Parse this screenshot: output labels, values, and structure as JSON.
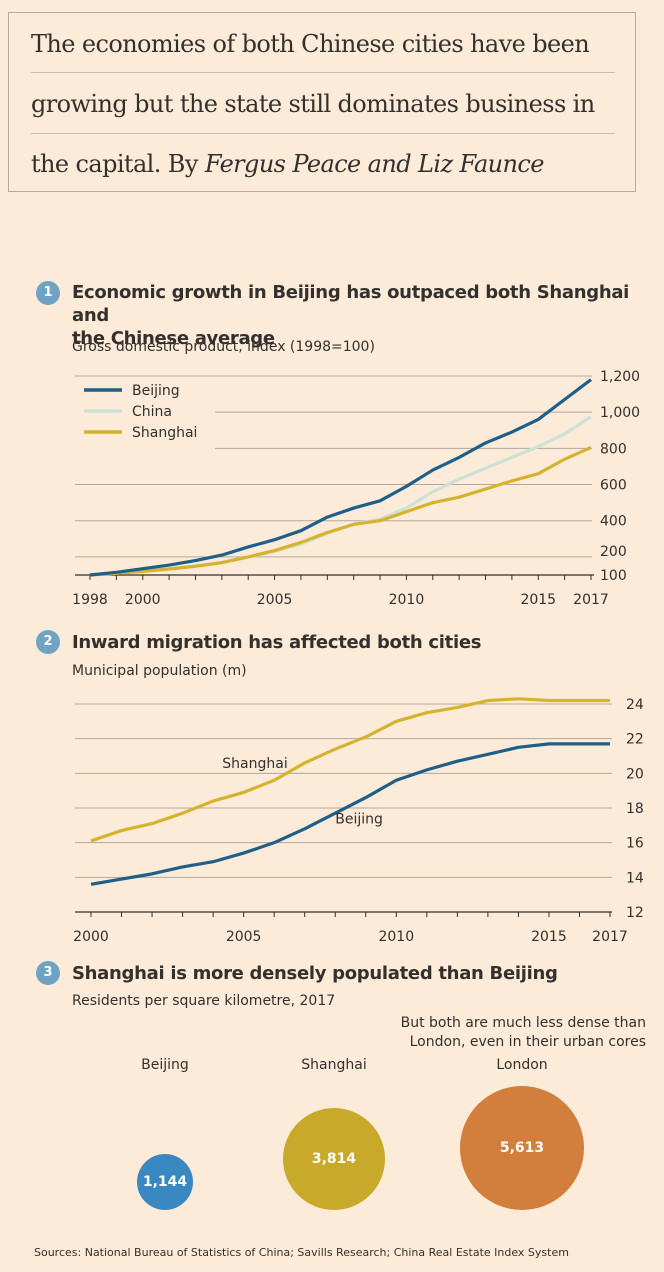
{
  "intro": {
    "line1": "The economies of both Chinese cities have been",
    "line2": "growing but the state still dominates business in",
    "line3_plain": "the capital. By ",
    "line3_italic": "Fergus Peace and Liz Faunce"
  },
  "sections": [
    {
      "num": "1",
      "title_line1": "Economic growth in Beijing has outpaced both Shanghai and",
      "title_line2": "the Chinese average",
      "subtitle": "Gross domestic product, index (1998=100)"
    },
    {
      "num": "2",
      "title": "Inward migration has affected both cities",
      "subtitle": "Municipal population (m)"
    },
    {
      "num": "3",
      "title": "Shanghai is more densely populated than Beijing",
      "subtitle": "Residents per square kilometre, 2017"
    }
  ],
  "colors": {
    "background": "#fcebd8",
    "beijing": "#1d5f88",
    "china": "#cbe2d5",
    "shanghai": "#d6b32e",
    "beijing_bubble": "#3a88c2",
    "shanghai_bubble": "#c8a92a",
    "london_bubble": "#d27f3e",
    "badge": "#6ea3c3"
  },
  "chart_data": [
    {
      "type": "line",
      "title": "Economic growth in Beijing has outpaced both Shanghai and the Chinese average",
      "subtitle": "Gross domestic product, index (1998=100)",
      "x": [
        1998,
        1999,
        2000,
        2001,
        2002,
        2003,
        2004,
        2005,
        2006,
        2007,
        2008,
        2009,
        2010,
        2011,
        2012,
        2013,
        2014,
        2015,
        2016,
        2017
      ],
      "x_ticks": [
        "1998",
        "2000",
        "2005",
        "2010",
        "2015",
        "2017"
      ],
      "y_ticks": [
        "100",
        "200",
        "400",
        "600",
        "800",
        "1,000",
        "1,200"
      ],
      "ylim": [
        100,
        1200
      ],
      "legend_position": "top-left",
      "series": [
        {
          "name": "Beijing",
          "values": [
            100,
            115,
            135,
            155,
            180,
            210,
            255,
            295,
            345,
            420,
            470,
            510,
            590,
            680,
            750,
            830,
            890,
            960,
            1070,
            1180
          ]
        },
        {
          "name": "China",
          "values": [
            100,
            110,
            122,
            135,
            150,
            170,
            200,
            230,
            270,
            330,
            380,
            410,
            470,
            560,
            630,
            690,
            750,
            810,
            880,
            975
          ]
        },
        {
          "name": "Shanghai",
          "values": [
            100,
            110,
            120,
            133,
            148,
            168,
            200,
            235,
            280,
            335,
            380,
            400,
            450,
            500,
            530,
            575,
            620,
            660,
            740,
            805
          ]
        }
      ]
    },
    {
      "type": "line",
      "title": "Inward migration has affected both cities",
      "subtitle": "Municipal population (m)",
      "x": [
        2000,
        2001,
        2002,
        2003,
        2004,
        2005,
        2006,
        2007,
        2008,
        2009,
        2010,
        2011,
        2012,
        2013,
        2014,
        2015,
        2016,
        2017
      ],
      "x_ticks": [
        "2000",
        "2005",
        "2010",
        "2015",
        "2017"
      ],
      "y_ticks": [
        "12",
        "14",
        "16",
        "18",
        "20",
        "22",
        "24"
      ],
      "ylim": [
        12,
        24
      ],
      "series": [
        {
          "name": "Shanghai",
          "values": [
            16.1,
            16.7,
            17.1,
            17.7,
            18.4,
            18.9,
            19.6,
            20.6,
            21.4,
            22.1,
            23.0,
            23.5,
            23.8,
            24.2,
            24.3,
            24.2,
            24.2,
            24.2
          ]
        },
        {
          "name": "Beijing",
          "values": [
            13.6,
            13.9,
            14.2,
            14.6,
            14.9,
            15.4,
            16.0,
            16.8,
            17.7,
            18.6,
            19.6,
            20.2,
            20.7,
            21.1,
            21.5,
            21.7,
            21.7,
            21.7
          ]
        }
      ]
    },
    {
      "type": "bubble",
      "title": "Shanghai is more densely populated than Beijing",
      "subtitle": "Residents per square kilometre, 2017",
      "categories": [
        "Beijing",
        "Shanghai",
        "London"
      ],
      "values": [
        1144,
        3814,
        5613
      ],
      "value_labels": [
        "1,144",
        "3,814",
        "5,613"
      ],
      "annotation": "But both are much less dense than London, even in their urban cores"
    }
  ],
  "bubbles": {
    "note_line1": "But both are much less dense than",
    "note_line2": "London, even in their urban cores"
  },
  "source": "Sources: National Bureau of Statistics of China; Savills Research; China Real Estate Index System"
}
